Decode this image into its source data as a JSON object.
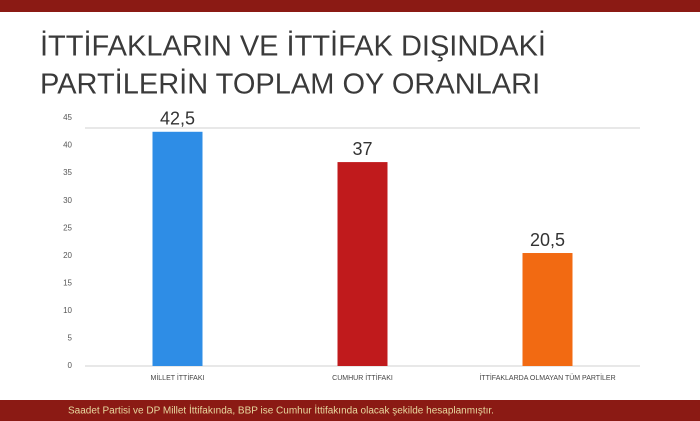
{
  "chart_data": {
    "type": "bar",
    "title": [
      "İTTİFAKLARIN VE İTTİFAK DIŞINDAKİ",
      "PARTİLERİN TOPLAM OY ORANLARI"
    ],
    "categories": [
      "MİLLET İTTİFAKI",
      "CUMHUR İTTİFAKI",
      "İTTİFAKLARDA OLMAYAN TÜM PARTİLER"
    ],
    "values": [
      42.5,
      37,
      20.5
    ],
    "value_labels": [
      "42,5",
      "37",
      "20,5"
    ],
    "colors": [
      "#2e8de6",
      "#c01a1c",
      "#f26a12"
    ],
    "ylim": [
      0,
      45
    ],
    "yticks": [
      0,
      5,
      10,
      15,
      20,
      25,
      30,
      35,
      40,
      45
    ],
    "note": "Saadet Partisi ve DP Millet İttifakında, BBP ise Cumhur İttifakında olacak şekilde hesaplanmıştır."
  }
}
